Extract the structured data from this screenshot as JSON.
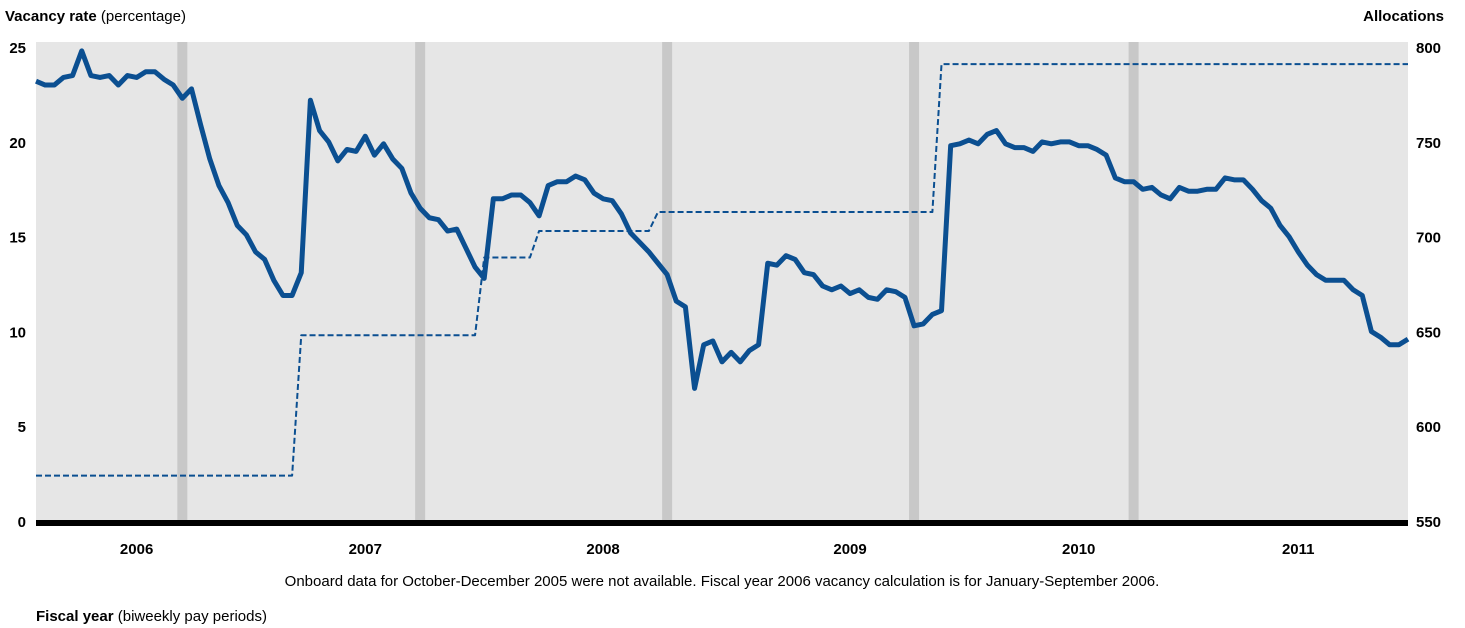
{
  "chart_data": {
    "type": "line",
    "ylabel": "Vacancy rate",
    "ylabel_note": "(percentage)",
    "y2label": "Allocations",
    "xlabel": "Fiscal year",
    "xlabel_note": "(biweekly pay periods)",
    "note": "Onboard data for October-December 2005 were not available. Fiscal year 2006 vacancy calculation is for January-September 2006.",
    "categories": [
      null,
      null,
      null,
      null,
      null,
      null,
      null,
      null,
      null,
      null,
      null,
      "2006",
      null,
      null,
      null,
      null,
      null,
      null,
      null,
      null,
      null,
      null,
      null,
      null,
      null,
      null,
      null,
      null,
      null,
      null,
      null,
      null,
      null,
      null,
      null,
      null,
      "2007",
      null,
      null,
      null,
      null,
      null,
      null,
      null,
      null,
      null,
      null,
      null,
      null,
      null,
      null,
      null,
      null,
      null,
      null,
      null,
      null,
      null,
      null,
      null,
      null,
      null,
      "2008",
      null,
      null,
      null,
      null,
      null,
      null,
      null,
      null,
      null,
      null,
      null,
      null,
      null,
      null,
      null,
      null,
      null,
      null,
      null,
      null,
      null,
      null,
      null,
      null,
      null,
      null,
      "2009",
      null,
      null,
      null,
      null,
      null,
      null,
      null,
      null,
      null,
      null,
      null,
      null,
      null,
      null,
      null,
      null,
      null,
      null,
      null,
      null,
      null,
      null,
      null,
      null,
      "2010",
      null,
      null,
      null,
      null,
      null,
      null,
      null,
      null,
      null,
      null,
      null,
      null,
      null,
      null,
      null,
      null,
      null,
      null,
      null,
      null,
      null,
      null,
      null,
      "2011",
      null,
      null,
      null,
      null,
      null,
      null,
      null,
      null,
      null,
      null,
      null,
      null
    ],
    "series": [
      {
        "color": "#0b4f91",
        "style": "solid",
        "values": [
          23.3,
          23.1,
          23.1,
          23.5,
          23.6,
          24.9,
          23.6,
          23.5,
          23.6,
          23.1,
          23.6,
          23.5,
          23.8,
          23.8,
          23.4,
          23.1,
          22.4,
          22.9,
          21.0,
          19.2,
          17.8,
          16.9,
          15.7,
          15.2,
          14.3,
          13.9,
          12.8,
          12.0,
          12.0,
          13.2,
          22.3,
          20.7,
          20.1,
          19.1,
          19.7,
          19.6,
          20.4,
          19.4,
          20.0,
          19.2,
          18.7,
          17.4,
          16.6,
          16.1,
          16.0,
          15.4,
          15.5,
          14.5,
          13.5,
          12.9,
          17.1,
          17.1,
          17.3,
          17.3,
          16.9,
          16.2,
          17.8,
          18.0,
          18.0,
          18.3,
          18.1,
          17.4,
          17.1,
          17.0,
          16.3,
          15.3,
          14.8,
          14.3,
          13.7,
          13.1,
          11.7,
          11.4,
          7.1,
          9.4,
          9.6,
          8.5,
          9.0,
          8.5,
          9.1,
          9.4,
          13.7,
          13.6,
          14.1,
          13.9,
          13.2,
          13.1,
          12.5,
          12.3,
          12.5,
          12.1,
          12.3,
          11.9,
          11.8,
          12.3,
          12.2,
          11.9,
          10.4,
          10.5,
          11.0,
          11.2,
          19.9,
          20.0,
          20.2,
          20.0,
          20.5,
          20.7,
          20.0,
          19.8,
          19.8,
          19.6,
          20.1,
          20.0,
          20.1,
          20.1,
          19.9,
          19.9,
          19.7,
          19.4,
          18.2,
          18.0,
          18.0,
          17.6,
          17.7,
          17.3,
          17.1,
          17.7,
          17.5,
          17.5,
          17.6,
          17.6,
          18.2,
          18.1,
          18.1,
          17.6,
          17.0,
          16.6,
          15.7,
          15.1,
          14.3,
          13.6,
          13.1,
          12.8,
          12.8,
          12.8,
          12.3,
          12.0,
          10.1,
          9.8,
          9.4,
          9.4,
          9.7
        ]
      },
      {
        "color": "#0b4f91",
        "style": "dashed",
        "axis": "y2",
        "values": [
          575,
          575,
          575,
          575,
          575,
          575,
          575,
          575,
          575,
          575,
          575,
          575,
          575,
          575,
          575,
          575,
          575,
          575,
          575,
          575,
          575,
          575,
          575,
          575,
          575,
          575,
          575,
          575,
          575,
          649,
          649,
          649,
          649,
          649,
          649,
          649,
          649,
          649,
          649,
          649,
          649,
          649,
          649,
          649,
          649,
          649,
          649,
          649,
          649,
          690,
          690,
          690,
          690,
          690,
          690,
          704,
          704,
          704,
          704,
          704,
          704,
          704,
          704,
          704,
          704,
          704,
          704,
          704,
          714,
          714,
          714,
          714,
          714,
          714,
          714,
          714,
          714,
          714,
          714,
          714,
          714,
          714,
          714,
          714,
          714,
          714,
          714,
          714,
          714,
          714,
          714,
          714,
          714,
          714,
          714,
          714,
          714,
          714,
          714,
          792,
          792,
          792,
          792,
          792,
          792,
          792,
          792,
          792,
          792,
          792,
          792,
          792,
          792,
          792,
          792,
          792,
          792,
          792,
          792,
          792,
          792,
          792,
          792,
          792,
          792,
          792,
          792,
          792,
          792,
          792,
          792,
          792,
          792,
          792,
          792,
          792,
          792,
          792,
          792,
          792,
          792,
          792,
          792,
          792,
          792,
          792,
          792,
          792,
          792,
          792,
          792
        ]
      }
    ],
    "vertical_bands": [
      16,
      42,
      69,
      96,
      120
    ],
    "band_color": "#c8c8c8",
    "background": "#e6e6e6",
    "ylim": [
      0,
      25
    ],
    "yticks": [
      0,
      5,
      10,
      15,
      20,
      25
    ],
    "y2lim": [
      550,
      800
    ],
    "y2ticks": [
      550,
      600,
      650,
      700,
      750,
      800
    ],
    "grid": false
  }
}
